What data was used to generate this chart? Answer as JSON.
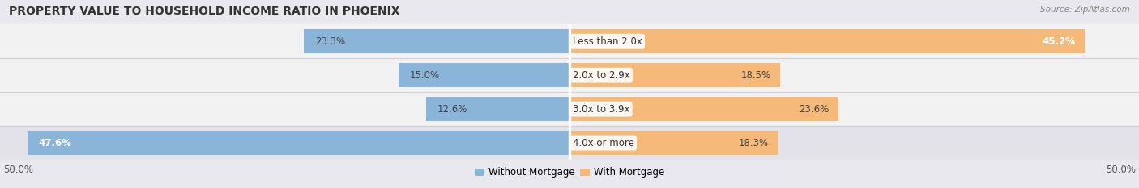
{
  "title": "PROPERTY VALUE TO HOUSEHOLD INCOME RATIO IN PHOENIX",
  "source": "Source: ZipAtlas.com",
  "categories": [
    "Less than 2.0x",
    "2.0x to 2.9x",
    "3.0x to 3.9x",
    "4.0x or more"
  ],
  "without_mortgage": [
    23.3,
    15.0,
    12.6,
    47.6
  ],
  "with_mortgage": [
    45.2,
    18.5,
    23.6,
    18.3
  ],
  "color_without": "#8ab4d8",
  "color_with": "#f5b97a",
  "color_without_light": "#b8d3e8",
  "color_with_light": "#fad9b0",
  "bar_height": 0.72,
  "xlim": 50.0,
  "background_row_light": "#f2f2f2",
  "background_row_dark": "#e2e2e8",
  "background_color": "#e8e8ee",
  "title_fontsize": 10,
  "label_fontsize": 8.5,
  "cat_fontsize": 8.5,
  "source_fontsize": 7.5,
  "axis_label_fontsize": 8.5,
  "row_sep_color": "#d0d0d8"
}
